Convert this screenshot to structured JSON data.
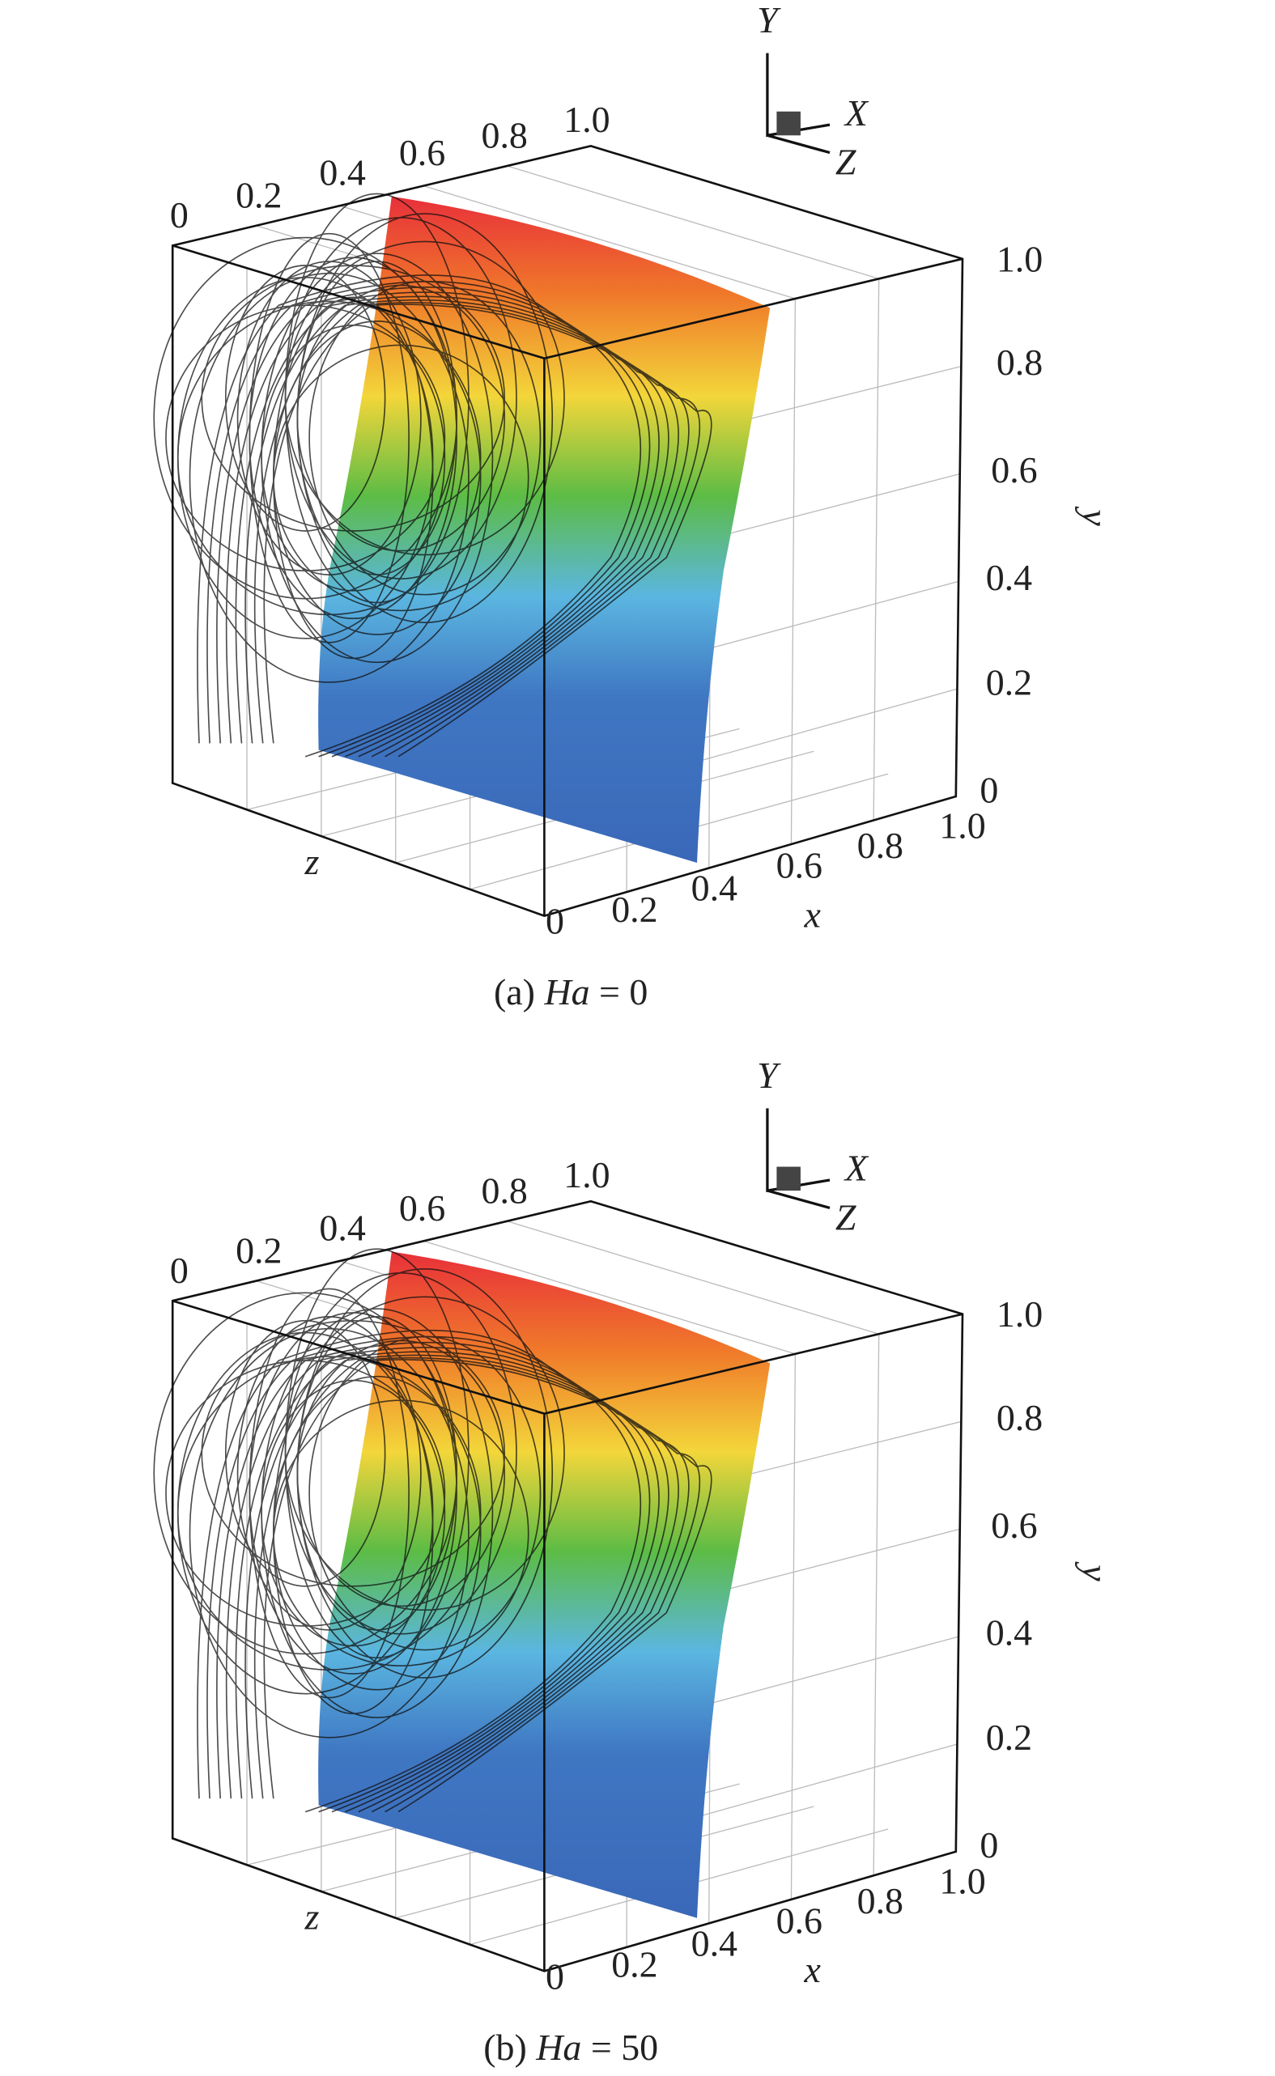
{
  "panels": [
    {
      "caption": {
        "label": "(a)",
        "param": "Ha",
        "value": "= 0"
      },
      "triad": {
        "y": "Y",
        "x": "X",
        "z": "Z"
      },
      "z_ticks": [
        "0",
        "0.2",
        "0.4",
        "0.6",
        "0.8",
        "1.0"
      ],
      "y_ticks": [
        "1.0",
        "0.8",
        "0.6",
        "0.4",
        "0.2",
        "0"
      ],
      "x_ticks": [
        "0",
        "0.2",
        "0.4",
        "0.6",
        "0.8",
        "1.0"
      ],
      "z_label": "z",
      "y_label": "y",
      "x_label": "x"
    },
    {
      "caption": {
        "label": "(b)",
        "param": "Ha",
        "value": "= 50"
      },
      "triad": {
        "y": "Y",
        "x": "X",
        "z": "Z"
      },
      "z_ticks": [
        "0",
        "0.2",
        "0.4",
        "0.6",
        "0.8",
        "1.0"
      ],
      "y_ticks": [
        "1.0",
        "0.8",
        "0.6",
        "0.4",
        "0.2",
        "0"
      ],
      "x_ticks": [
        "0",
        "0.2",
        "0.4",
        "0.6",
        "0.8",
        "1.0"
      ],
      "z_label": "z",
      "y_label": "y",
      "x_label": "x"
    }
  ]
}
